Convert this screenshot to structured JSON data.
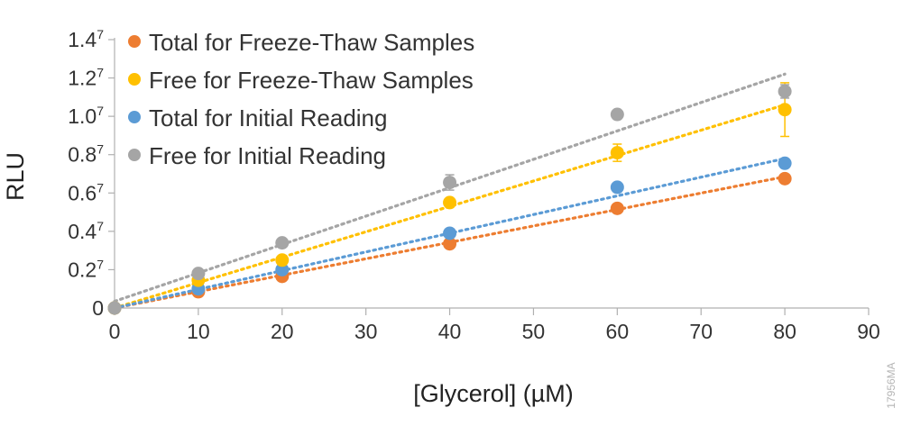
{
  "chart_data": {
    "type": "scatter",
    "xlabel": "[Glycerol] (µM)",
    "ylabel": "RLU",
    "xlim": [
      0,
      90
    ],
    "ylim": [
      0,
      1.4
    ],
    "x_ticks": [
      "0",
      "10",
      "20",
      "30",
      "40",
      "50",
      "60",
      "70",
      "80",
      "90"
    ],
    "y_ticks": [
      {
        "value": 0,
        "base": "0",
        "exp": ""
      },
      {
        "value": 0.2,
        "base": "0.2",
        "exp": "7"
      },
      {
        "value": 0.4,
        "base": "0.4",
        "exp": "7"
      },
      {
        "value": 0.6,
        "base": "0.6",
        "exp": "7"
      },
      {
        "value": 0.8,
        "base": "0.8",
        "exp": "7"
      },
      {
        "value": 1.0,
        "base": "1.0",
        "exp": "7"
      },
      {
        "value": 1.2,
        "base": "1.2",
        "exp": "7"
      },
      {
        "value": 1.4,
        "base": "1.4",
        "exp": "7"
      }
    ],
    "grid": false,
    "legend_position": "top-left",
    "trendline": "linear, dotted",
    "series": [
      {
        "name": "Total for Freeze-Thaw Samples",
        "color": "#ED7D31",
        "x": [
          0,
          10,
          20,
          40,
          60,
          80
        ],
        "y": [
          0.0,
          0.085,
          0.165,
          0.335,
          0.52,
          0.675
        ],
        "err": [
          0,
          0,
          0,
          0,
          0,
          0
        ],
        "trend": [
          0.0,
          0.685
        ]
      },
      {
        "name": "Free for Freeze-Thaw Samples",
        "color": "#FFC000",
        "x": [
          0,
          10,
          20,
          40,
          60,
          80
        ],
        "y": [
          0.0,
          0.145,
          0.25,
          0.55,
          0.81,
          1.035
        ],
        "err": [
          0,
          0,
          0,
          0.02,
          0.045,
          0.14
        ],
        "trend": [
          0.0,
          1.06
        ]
      },
      {
        "name": "Total for Initial Reading",
        "color": "#5B9BD5",
        "x": [
          0,
          10,
          20,
          40,
          60,
          80
        ],
        "y": [
          0.0,
          0.1,
          0.2,
          0.39,
          0.63,
          0.755
        ],
        "err": [
          0,
          0,
          0,
          0,
          0,
          0
        ],
        "trend": [
          0.0,
          0.78
        ]
      },
      {
        "name": "Free for Initial Reading",
        "color": "#A5A5A5",
        "x": [
          0,
          10,
          20,
          40,
          60,
          80
        ],
        "y": [
          0.0,
          0.18,
          0.34,
          0.655,
          1.01,
          1.13
        ],
        "err": [
          0,
          0,
          0,
          0.04,
          0,
          0.035
        ],
        "trend": [
          0.035,
          1.22
        ]
      }
    ]
  },
  "watermark": "17956MA"
}
